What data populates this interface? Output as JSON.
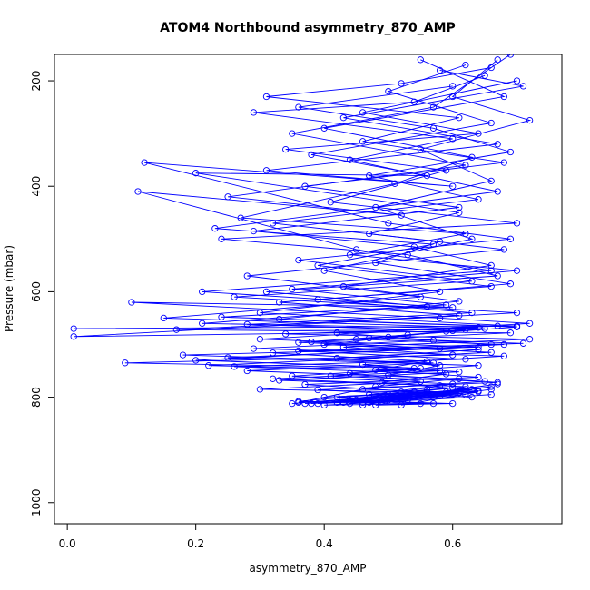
{
  "chart_data": {
    "type": "line",
    "title": "ATOM4 Northbound asymmetry_870_AMP",
    "xlabel": "asymmetry_870_AMP",
    "ylabel": "Pressure (mbar)",
    "xlim": [
      -0.02,
      0.77
    ],
    "ylim": [
      1040,
      150
    ],
    "y_reversed": true,
    "x_ticks": [
      "0.0",
      "0.2",
      "0.4",
      "0.6"
    ],
    "y_ticks": [
      "200",
      "400",
      "600",
      "800",
      "1000"
    ],
    "x_tick_values": [
      0.0,
      0.2,
      0.4,
      0.6
    ],
    "y_tick_values": [
      200,
      400,
      600,
      800,
      1000
    ],
    "series_color": "#0000ff",
    "marker": "open-circle",
    "grid": false,
    "series": [
      {
        "points": [
          [
            0.67,
            160
          ],
          [
            0.6,
            230
          ],
          [
            0.72,
            275
          ],
          [
            0.55,
            330
          ],
          [
            0.66,
            390
          ],
          [
            0.48,
            440
          ],
          [
            0.63,
            500
          ],
          [
            0.4,
            560
          ],
          [
            0.58,
            600
          ],
          [
            0.3,
            640
          ],
          [
            0.7,
            665
          ],
          [
            0.01,
            670
          ],
          [
            0.62,
            672
          ],
          [
            0.45,
            690
          ],
          [
            0.68,
            700
          ],
          [
            0.2,
            730
          ],
          [
            0.55,
            745
          ],
          [
            0.35,
            760
          ],
          [
            0.6,
            775
          ],
          [
            0.52,
            790
          ],
          [
            0.42,
            810
          ],
          [
            0.63,
            785
          ],
          [
            0.38,
            812
          ],
          [
            0.5,
            805
          ],
          [
            0.66,
            780
          ],
          [
            0.46,
            815
          ],
          [
            0.56,
            790
          ],
          [
            0.4,
            800
          ]
        ]
      },
      {
        "points": [
          [
            0.69,
            150
          ],
          [
            0.57,
            250
          ],
          [
            0.35,
            300
          ],
          [
            0.62,
            360
          ],
          [
            0.25,
            420
          ],
          [
            0.52,
            455
          ],
          [
            0.11,
            410
          ],
          [
            0.45,
            520
          ],
          [
            0.66,
            560
          ],
          [
            0.21,
            600
          ],
          [
            0.6,
            630
          ],
          [
            0.1,
            620
          ],
          [
            0.58,
            650
          ],
          [
            0.72,
            660
          ],
          [
            0.3,
            690
          ],
          [
            0.64,
            705
          ],
          [
            0.18,
            720
          ],
          [
            0.57,
            735
          ],
          [
            0.28,
            750
          ],
          [
            0.61,
            765
          ],
          [
            0.48,
            780
          ],
          [
            0.36,
            810
          ],
          [
            0.6,
            795
          ],
          [
            0.44,
            812
          ],
          [
            0.67,
            775
          ],
          [
            0.47,
            810
          ],
          [
            0.56,
            785
          ]
        ]
      },
      {
        "points": [
          [
            0.58,
            180
          ],
          [
            0.71,
            210
          ],
          [
            0.43,
            270
          ],
          [
            0.67,
            320
          ],
          [
            0.31,
            370
          ],
          [
            0.6,
            400
          ],
          [
            0.12,
            355
          ],
          [
            0.5,
            470
          ],
          [
            0.69,
            500
          ],
          [
            0.36,
            540
          ],
          [
            0.63,
            580
          ],
          [
            0.26,
            610
          ],
          [
            0.7,
            640
          ],
          [
            0.01,
            685
          ],
          [
            0.59,
            675
          ],
          [
            0.4,
            700
          ],
          [
            0.66,
            715
          ],
          [
            0.22,
            740
          ],
          [
            0.58,
            750
          ],
          [
            0.32,
            765
          ],
          [
            0.62,
            780
          ],
          [
            0.5,
            795
          ],
          [
            0.37,
            812
          ],
          [
            0.57,
            800
          ],
          [
            0.43,
            810
          ],
          [
            0.64,
            790
          ],
          [
            0.52,
            815
          ]
        ]
      },
      {
        "points": [
          [
            0.62,
            170
          ],
          [
            0.5,
            220
          ],
          [
            0.66,
            280
          ],
          [
            0.38,
            340
          ],
          [
            0.56,
            380
          ],
          [
            0.2,
            375
          ],
          [
            0.61,
            450
          ],
          [
            0.47,
            490
          ],
          [
            0.68,
            520
          ],
          [
            0.28,
            570
          ],
          [
            0.55,
            610
          ],
          [
            0.15,
            650
          ],
          [
            0.64,
            668
          ],
          [
            0.34,
            680
          ],
          [
            0.72,
            690
          ],
          [
            0.43,
            705
          ],
          [
            0.6,
            720
          ],
          [
            0.09,
            735
          ],
          [
            0.54,
            745
          ],
          [
            0.41,
            760
          ],
          [
            0.65,
            770
          ],
          [
            0.46,
            785
          ],
          [
            0.59,
            790
          ],
          [
            0.35,
            812
          ],
          [
            0.62,
            785
          ],
          [
            0.49,
            808
          ],
          [
            0.66,
            795
          ]
        ]
      },
      {
        "points": [
          [
            0.65,
            190
          ],
          [
            0.54,
            240
          ],
          [
            0.29,
            260
          ],
          [
            0.6,
            310
          ],
          [
            0.44,
            350
          ],
          [
            0.67,
            410
          ],
          [
            0.23,
            480
          ],
          [
            0.57,
            510
          ],
          [
            0.39,
            550
          ],
          [
            0.66,
            590
          ],
          [
            0.33,
            620
          ],
          [
            0.61,
            645
          ],
          [
            0.17,
            672
          ],
          [
            0.69,
            678
          ],
          [
            0.38,
            695
          ],
          [
            0.58,
            708
          ],
          [
            0.25,
            725
          ],
          [
            0.64,
            740
          ],
          [
            0.44,
            755
          ],
          [
            0.55,
            770
          ],
          [
            0.3,
            785
          ],
          [
            0.61,
            792
          ],
          [
            0.45,
            805
          ],
          [
            0.57,
            812
          ],
          [
            0.4,
            815
          ],
          [
            0.63,
            800
          ]
        ]
      },
      {
        "points": [
          [
            0.7,
            200
          ],
          [
            0.46,
            260
          ],
          [
            0.64,
            300
          ],
          [
            0.34,
            330
          ],
          [
            0.59,
            370
          ],
          [
            0.41,
            430
          ],
          [
            0.7,
            470
          ],
          [
            0.24,
            500
          ],
          [
            0.53,
            530
          ],
          [
            0.67,
            570
          ],
          [
            0.31,
            600
          ],
          [
            0.56,
            628
          ],
          [
            0.21,
            660
          ],
          [
            0.65,
            670
          ],
          [
            0.47,
            688
          ],
          [
            0.71,
            698
          ],
          [
            0.36,
            712
          ],
          [
            0.62,
            728
          ],
          [
            0.26,
            742
          ],
          [
            0.59,
            756
          ],
          [
            0.49,
            772
          ],
          [
            0.63,
            786
          ],
          [
            0.42,
            800
          ],
          [
            0.55,
            812
          ],
          [
            0.36,
            808
          ],
          [
            0.6,
            782
          ]
        ]
      },
      {
        "points": [
          [
            0.55,
            160
          ],
          [
            0.68,
            230
          ],
          [
            0.4,
            290
          ],
          [
            0.63,
            345
          ],
          [
            0.51,
            395
          ],
          [
            0.27,
            460
          ],
          [
            0.62,
            490
          ],
          [
            0.44,
            530
          ],
          [
            0.7,
            560
          ],
          [
            0.35,
            595
          ],
          [
            0.59,
            625
          ],
          [
            0.24,
            648
          ],
          [
            0.67,
            665
          ],
          [
            0.42,
            678
          ],
          [
            0.57,
            692
          ],
          [
            0.29,
            708
          ],
          [
            0.68,
            722
          ],
          [
            0.46,
            738
          ],
          [
            0.61,
            752
          ],
          [
            0.33,
            768
          ],
          [
            0.58,
            778
          ],
          [
            0.47,
            795
          ],
          [
            0.64,
            788
          ],
          [
            0.39,
            812
          ],
          [
            0.53,
            805
          ],
          [
            0.61,
            790
          ]
        ]
      },
      {
        "points": [
          [
            0.6,
            210
          ],
          [
            0.36,
            250
          ],
          [
            0.57,
            290
          ],
          [
            0.69,
            335
          ],
          [
            0.47,
            380
          ],
          [
            0.64,
            425
          ],
          [
            0.32,
            470
          ],
          [
            0.58,
            505
          ],
          [
            0.48,
            545
          ],
          [
            0.69,
            585
          ],
          [
            0.39,
            615
          ],
          [
            0.63,
            640
          ],
          [
            0.28,
            662
          ],
          [
            0.6,
            674
          ],
          [
            0.5,
            686
          ],
          [
            0.66,
            700
          ],
          [
            0.32,
            716
          ],
          [
            0.56,
            732
          ],
          [
            0.48,
            748
          ],
          [
            0.64,
            762
          ],
          [
            0.37,
            776
          ],
          [
            0.54,
            790
          ],
          [
            0.44,
            806
          ],
          [
            0.6,
            812
          ],
          [
            0.48,
            815
          ],
          [
            0.66,
            785
          ]
        ]
      },
      {
        "points": [
          [
            0.66,
            175
          ],
          [
            0.52,
            205
          ],
          [
            0.31,
            230
          ],
          [
            0.61,
            270
          ],
          [
            0.46,
            315
          ],
          [
            0.68,
            355
          ],
          [
            0.37,
            400
          ],
          [
            0.61,
            440
          ],
          [
            0.29,
            485
          ],
          [
            0.54,
            515
          ],
          [
            0.66,
            550
          ],
          [
            0.43,
            590
          ],
          [
            0.61,
            618
          ],
          [
            0.33,
            652
          ],
          [
            0.7,
            667
          ],
          [
            0.53,
            682
          ],
          [
            0.36,
            696
          ],
          [
            0.64,
            710
          ],
          [
            0.42,
            726
          ],
          [
            0.58,
            740
          ],
          [
            0.5,
            758
          ],
          [
            0.67,
            772
          ],
          [
            0.39,
            786
          ],
          [
            0.58,
            798
          ],
          [
            0.46,
            810
          ],
          [
            0.62,
            795
          ]
        ]
      }
    ]
  }
}
